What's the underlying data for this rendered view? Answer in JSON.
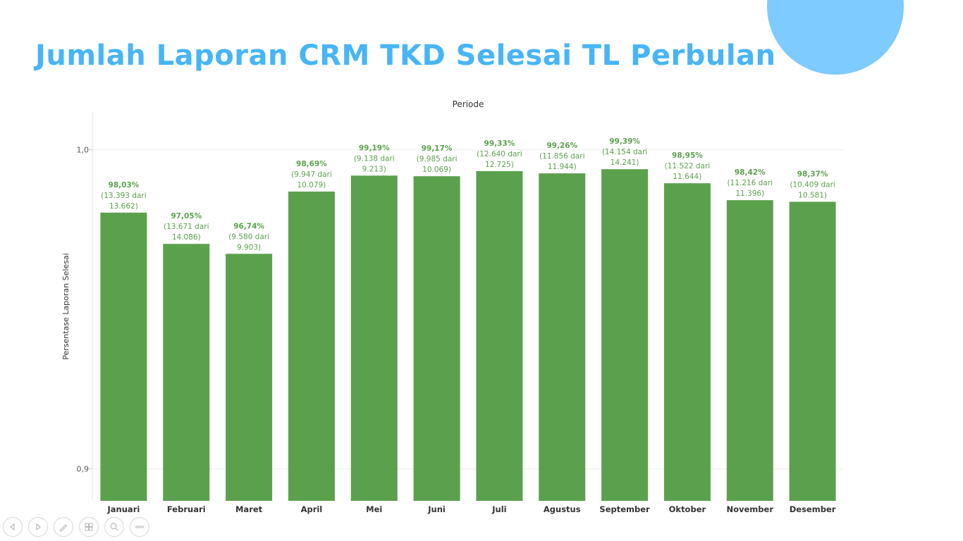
{
  "slide": {
    "title": "Jumlah Laporan CRM TKD Selesai TL Perbulan",
    "accent_color": "#47b5f6",
    "circle_color": "#7ecbff"
  },
  "chart_data": {
    "type": "bar",
    "title": "Periode",
    "xlabel": "",
    "ylabel": "Persentase Laporan Selesai",
    "ylim": [
      0.89,
      1.0116
    ],
    "yticks": [
      0.9,
      1.0
    ],
    "ytick_labels": [
      "0,9",
      "1,0"
    ],
    "bar_color": "#5ba14d",
    "label_color": "#5ba14d",
    "categories": [
      "Januari",
      "Februari",
      "Maret",
      "April",
      "Mei",
      "Juni",
      "Juli",
      "Agustus",
      "September",
      "Oktober",
      "November",
      "Desember"
    ],
    "values": [
      0.9803,
      0.9705,
      0.9674,
      0.9869,
      0.9919,
      0.9917,
      0.9933,
      0.9926,
      0.9939,
      0.9895,
      0.9842,
      0.9837
    ],
    "value_labels": [
      "98,03%",
      "97,05%",
      "96,74%",
      "98,69%",
      "99,19%",
      "99,17%",
      "99,33%",
      "99,26%",
      "99,39%",
      "98,95%",
      "98,42%",
      "98,37%"
    ],
    "detail_lines": [
      [
        "(13.393 dari",
        "13.662)"
      ],
      [
        "(13.671 dari",
        "14.086)"
      ],
      [
        "(9.580 dari",
        "9.903)"
      ],
      [
        "(9.947 dari",
        "10.079)"
      ],
      [
        "(9.138 dari",
        "9.213)"
      ],
      [
        "(9.985 dari",
        "10.069)"
      ],
      [
        "(12.640 dari",
        "12.725)"
      ],
      [
        "(11.856 dari",
        "11.944)"
      ],
      [
        "(14.154 dari",
        "14.241)"
      ],
      [
        "(11.522 dari",
        "11.644)"
      ],
      [
        "(11.216 dari",
        "11.396)"
      ],
      [
        "(10.409 dari",
        "10.581)"
      ]
    ]
  },
  "toolbar": {
    "buttons": [
      "previous-slide-icon",
      "next-slide-icon",
      "pen-icon",
      "slides-grid-icon",
      "zoom-icon",
      "more-options-icon"
    ]
  }
}
